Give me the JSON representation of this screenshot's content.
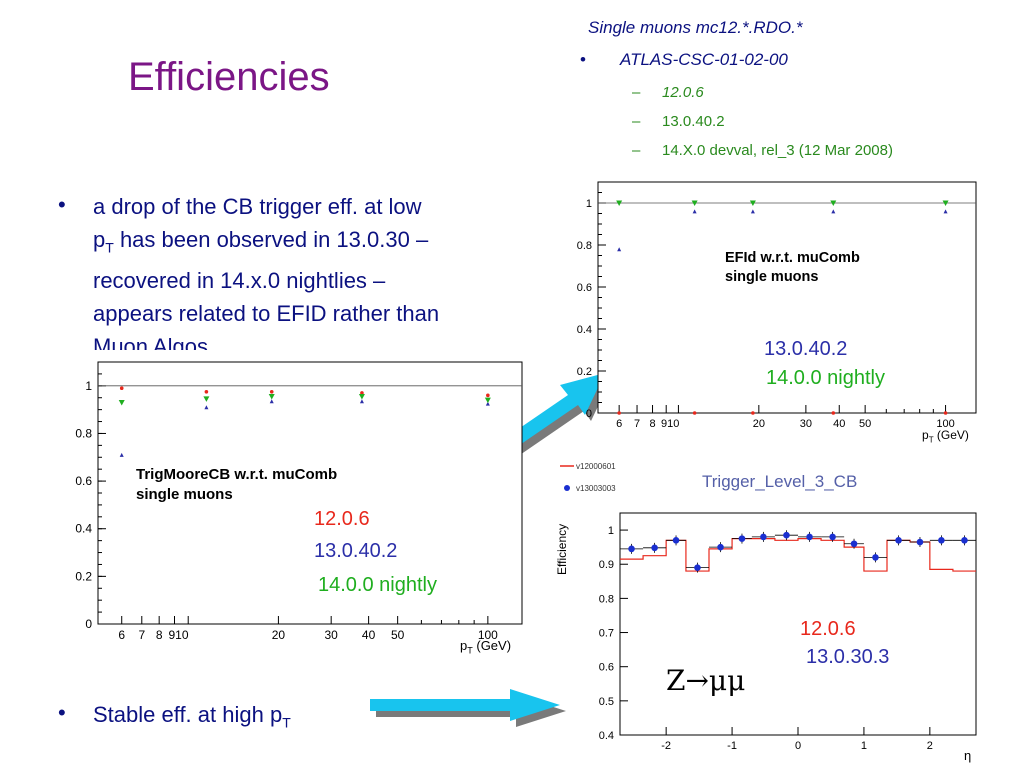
{
  "title": "Efficiencies",
  "header": {
    "line1": "Single muons mc12.*.RDO.*",
    "line2": "ATLAS-CSC-01-02-00",
    "items": [
      "12.0.6",
      "13.0.40.2",
      "14.X.0 devval, rel_3 (12 Mar 2008)"
    ]
  },
  "bullets": [
    {
      "lines": [
        "a drop of the CB trigger eff. at low",
        "has been observed in 13.0.30 –",
        "recovered in 14.x.0 nightlies –",
        "appears related to EFID rather than",
        "Muon Algos"
      ],
      "pt_main": "p",
      "pt_sub": "T"
    },
    {
      "text": "Stable eff. at high p",
      "sub": "T"
    }
  ],
  "plot_top": {
    "annotation": [
      "EFId w.r.t. muComb",
      "single muons"
    ],
    "label_a": "13.0.40.2",
    "label_b": "14.0.0 nightly",
    "xlabel_main": "p",
    "xlabel_sub": "T",
    "xlabel_unit": "(GeV)",
    "yticks": [
      "0",
      "0.2",
      "0.4",
      "0.6",
      "0.8",
      "1"
    ],
    "xticks": [
      "6",
      "7",
      "8",
      "910",
      "20",
      "30",
      "40",
      "50",
      "100"
    ]
  },
  "plot_left": {
    "annotation": [
      "TrigMooreCB w.r.t. muComb",
      "single muons"
    ],
    "label_a": "12.0.6",
    "label_b": "13.0.40.2",
    "label_c": "14.0.0 nightly",
    "xlabel_main": "p",
    "xlabel_sub": "T",
    "xlabel_unit": "(GeV)",
    "yticks": [
      "0",
      "0.2",
      "0.4",
      "0.6",
      "0.8",
      "1"
    ],
    "xticks": [
      "6",
      "7",
      "8",
      "910",
      "20",
      "30",
      "40",
      "50",
      "100"
    ]
  },
  "plot_br": {
    "title": "Trigger_Level_3_CB",
    "legend": [
      "v12000601",
      "v13003003"
    ],
    "ylabel": "Efficiency",
    "xlabel": "η",
    "yticks": [
      "0.4",
      "0.5",
      "0.6",
      "0.7",
      "0.8",
      "0.9",
      "1"
    ],
    "xticks": [
      "-2",
      "-1",
      "0",
      "1",
      "2"
    ],
    "label_a": "12.0.6",
    "label_b": "13.0.30.3",
    "label_z": "Z→μμ"
  },
  "colors": {
    "title": "#7b1686",
    "text": "#0b1180",
    "red": "#e8281c",
    "blue": "#2b2fa8",
    "green": "#1fae1f",
    "arrow": "#18c4ee"
  }
}
